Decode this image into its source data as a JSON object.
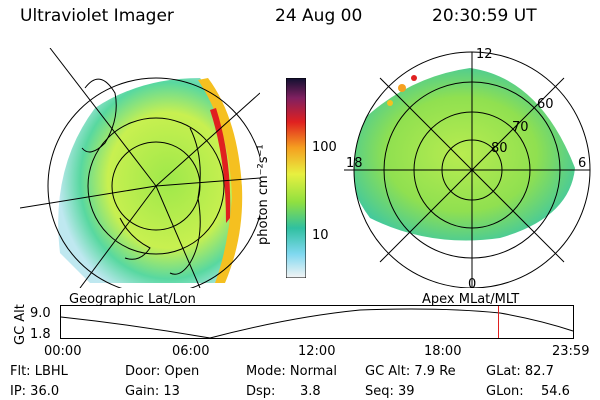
{
  "header": {
    "instrument": "Ultraviolet Imager",
    "date": "24 Aug 00",
    "time": "20:30:59 UT"
  },
  "colorbar": {
    "unit_label": "photon cm⁻²s⁻¹",
    "ticks": [
      "100",
      "10"
    ]
  },
  "left_panel": {
    "caption": "Geographic Lat/Lon"
  },
  "right_panel": {
    "caption": "Apex MLat/MLT",
    "mlt_labels": {
      "top": "12",
      "bottom": "0",
      "left": "18",
      "right": "6"
    },
    "lat_labels": [
      "60",
      "70",
      "80"
    ]
  },
  "timeline": {
    "ylabel": "GC Alt",
    "yticks": [
      "9.0",
      "1.8"
    ],
    "xticks": [
      "00:00",
      "06:00",
      "12:00",
      "18:00",
      "23:59"
    ],
    "current_time_fraction": 0.8545
  },
  "info": {
    "row1": [
      {
        "label": "Flt: LBHL"
      },
      {
        "label": "Door: Open"
      },
      {
        "label": "Mode: Normal"
      },
      {
        "label": "GC Alt: 7.9 Re"
      },
      {
        "label": "GLat: 82.7"
      }
    ],
    "row2": [
      {
        "label": "IP: 36.0"
      },
      {
        "label": "Gain: 13"
      },
      {
        "label": "Dsp:",
        "value": "3.8"
      },
      {
        "label": "Seq: 39"
      },
      {
        "label": "GLon:",
        "value": "54.6"
      }
    ]
  }
}
